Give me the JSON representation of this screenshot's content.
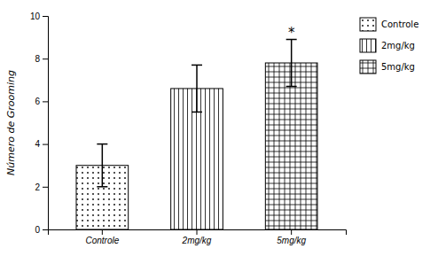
{
  "chart_data": {
    "type": "bar",
    "categories": [
      "Controle",
      "2mg/kg",
      "5mg/kg"
    ],
    "values": [
      3.0,
      6.6,
      7.8
    ],
    "errors": [
      1.0,
      1.1,
      1.1
    ],
    "color": "#ffffff",
    "ylabel": "Número de Grooming",
    "ylim": [
      0,
      10
    ],
    "yticks": [
      0,
      2,
      4,
      6,
      8,
      10
    ],
    "grid": false,
    "legend": "right",
    "annotations": [
      {
        "category": "5mg/kg",
        "text": "*"
      }
    ]
  }
}
